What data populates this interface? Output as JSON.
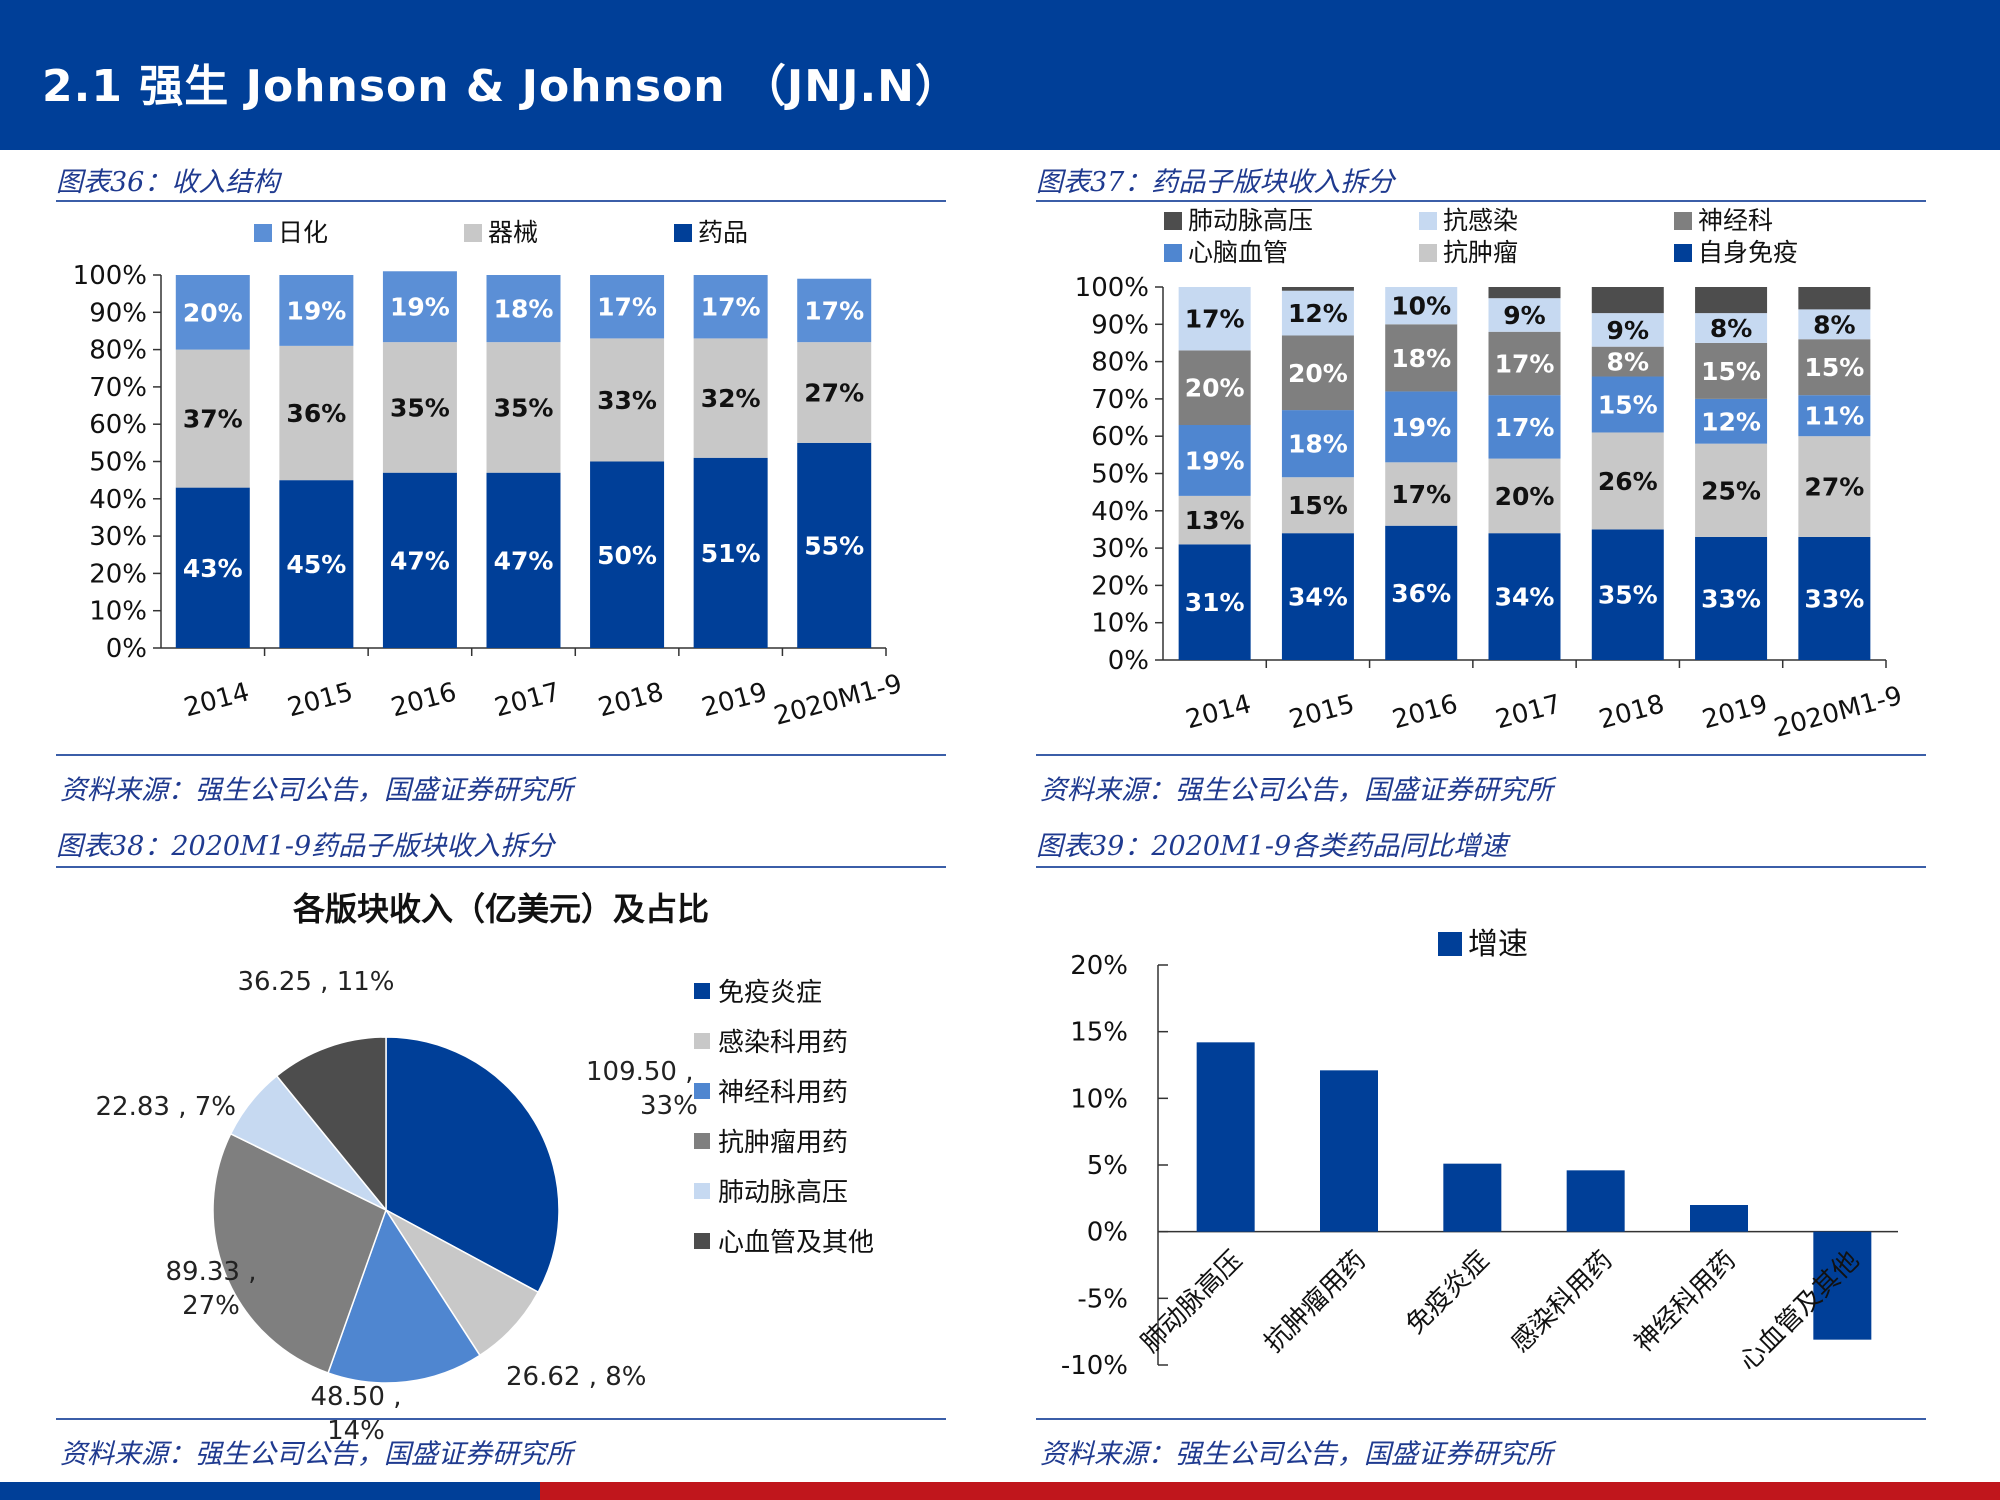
{
  "page_title": "2.1 强生 Johnson & Johnson （JNJ.N）",
  "colors": {
    "brand_blue": "#003f98",
    "footer_red": "#c0161c",
    "caption_blue": "#1f3a8f"
  },
  "panels": [
    {
      "caption": "图表36：收入结构",
      "source": "资料来源：强生公司公告，国盛证券研究所"
    },
    {
      "caption": "图表37：药品子版块收入拆分",
      "source": "资料来源：强生公司公告，国盛证券研究所"
    },
    {
      "caption": "图表38：2020M1-9药品子版块收入拆分",
      "source": "资料来源：强生公司公告，国盛证券研究所"
    },
    {
      "caption": "图表39：2020M1-9各类药品同比增速",
      "source": "资料来源：强生公司公告，国盛证券研究所"
    }
  ],
  "chart_data": [
    {
      "type": "bar",
      "stacked": true,
      "categories": [
        "2014",
        "2015",
        "2016",
        "2017",
        "2018",
        "2019",
        "2020M1-9"
      ],
      "ylim": [
        0,
        100
      ],
      "yticks": [
        "0%",
        "10%",
        "20%",
        "30%",
        "40%",
        "50%",
        "60%",
        "70%",
        "80%",
        "90%",
        "100%"
      ],
      "legend": [
        "日化",
        "器械",
        "药品"
      ],
      "series": [
        {
          "name": "药品",
          "color": "#003f98",
          "label_color": "#ffffff",
          "values": [
            43,
            45,
            47,
            47,
            50,
            51,
            55
          ]
        },
        {
          "name": "器械",
          "color": "#c8c8c8",
          "label_color": "#111111",
          "values": [
            37,
            36,
            35,
            35,
            33,
            32,
            27
          ]
        },
        {
          "name": "日化",
          "color": "#5b8fd6",
          "label_color": "#ffffff",
          "values": [
            20,
            19,
            19,
            18,
            17,
            17,
            17
          ]
        }
      ]
    },
    {
      "type": "bar",
      "stacked": true,
      "categories": [
        "2014",
        "2015",
        "2016",
        "2017",
        "2018",
        "2019",
        "2020M1-9"
      ],
      "ylim": [
        0,
        100
      ],
      "yticks": [
        "0%",
        "10%",
        "20%",
        "30%",
        "40%",
        "50%",
        "60%",
        "70%",
        "80%",
        "90%",
        "100%"
      ],
      "legend": [
        "肺动脉高压",
        "抗感染",
        "神经科",
        "心脑血管",
        "抗肿瘤",
        "自身免疫"
      ],
      "series": [
        {
          "name": "自身免疫",
          "color": "#003f98",
          "label_color": "#ffffff",
          "values": [
            31,
            34,
            36,
            34,
            35,
            33,
            33
          ],
          "labels": [
            "31%",
            "34%",
            "36%",
            "34%",
            "35%",
            "33%",
            "33%"
          ]
        },
        {
          "name": "抗肿瘤",
          "color": "#c8c8c8",
          "label_color": "#111111",
          "values": [
            13,
            15,
            17,
            20,
            26,
            25,
            27
          ],
          "labels": [
            "13%",
            "15%",
            "17%",
            "20%",
            "26%",
            "25%",
            "27%"
          ]
        },
        {
          "name": "心脑血管",
          "color": "#4f86d0",
          "label_color": "#ffffff",
          "values": [
            19,
            18,
            19,
            17,
            15,
            12,
            11
          ],
          "labels": [
            "19%",
            "18%",
            "19%",
            "17%",
            "15%",
            "12%",
            "11%"
          ]
        },
        {
          "name": "神经科",
          "color": "#7f7f7f",
          "label_color": "#ffffff",
          "values": [
            20,
            20,
            18,
            17,
            8,
            15,
            15
          ],
          "labels": [
            "20%",
            "20%",
            "18%",
            "17%",
            "8%",
            "15%",
            "15%"
          ]
        },
        {
          "name": "抗感染",
          "color": "#c6d9f1",
          "label_color": "#111111",
          "values": [
            17,
            12,
            10,
            9,
            9,
            8,
            8
          ],
          "labels": [
            "17%",
            "12%",
            "10%",
            "9%",
            "9%",
            "8%",
            "8%"
          ]
        },
        {
          "name": "肺动脉高压",
          "color": "#4d4d4d",
          "label_color": "#ffffff",
          "values": [
            0,
            1,
            0,
            3,
            7,
            7,
            6
          ],
          "labels": [
            "",
            "",
            "",
            "",
            "",
            "",
            ""
          ]
        }
      ]
    },
    {
      "type": "pie",
      "title": "各版块收入（亿美元）及占比",
      "legend": [
        "免疫炎症",
        "感染科用药",
        "神经科用药",
        "抗肿瘤用药",
        "肺动脉高压",
        "心血管及其他"
      ],
      "slices": [
        {
          "name": "免疫炎症",
          "value": 109.5,
          "percent": 33,
          "color": "#003f98",
          "label": "109.50 , 33%"
        },
        {
          "name": "感染科用药",
          "value": 26.62,
          "percent": 8,
          "color": "#c8c8c8",
          "label": "26.62 , 8%"
        },
        {
          "name": "神经科用药",
          "value": 48.5,
          "percent": 14,
          "color": "#4f86d0",
          "label": "48.50 , 14%"
        },
        {
          "name": "抗肿瘤用药",
          "value": 89.33,
          "percent": 27,
          "color": "#7f7f7f",
          "label": "89.33 , 27%"
        },
        {
          "name": "肺动脉高压",
          "value": 22.83,
          "percent": 7,
          "color": "#c6d9f1",
          "label": "22.83 , 7%"
        },
        {
          "name": "心血管及其他",
          "value": 36.25,
          "percent": 11,
          "color": "#4d4d4d",
          "label": "36.25 , 11%"
        }
      ]
    },
    {
      "type": "bar",
      "legend": [
        "增速"
      ],
      "categories": [
        "肺动脉高压",
        "抗肿瘤用药",
        "免疫炎症",
        "感染科用药",
        "神经科用药",
        "心血管及其他"
      ],
      "series": [
        {
          "name": "增速",
          "color": "#003f98",
          "values": [
            14.2,
            12.1,
            5.1,
            4.6,
            2.0,
            -8.1
          ]
        }
      ],
      "ylim": [
        -10,
        20
      ],
      "yticks": [
        "-10%",
        "-5%",
        "0%",
        "5%",
        "10%",
        "15%",
        "20%"
      ]
    }
  ]
}
